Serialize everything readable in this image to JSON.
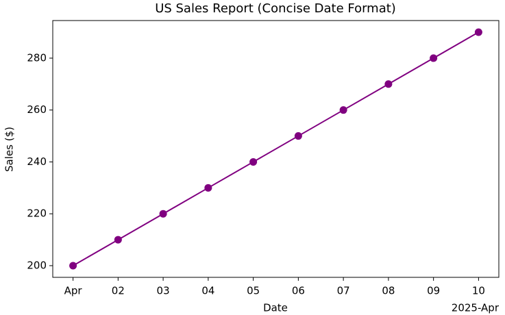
{
  "chart_data": {
    "type": "line",
    "title": "US Sales Report (Concise Date Format)",
    "x_label": "Date",
    "y_label": "Sales ($)",
    "x_offset_label": "2025-Apr",
    "x": [
      "2025-04-01",
      "2025-04-02",
      "2025-04-03",
      "2025-04-04",
      "2025-04-05",
      "2025-04-06",
      "2025-04-07",
      "2025-04-08",
      "2025-04-09",
      "2025-04-10"
    ],
    "series": [
      {
        "name": "Sales",
        "color": "#800080",
        "values": [
          200,
          210,
          220,
          230,
          240,
          250,
          260,
          270,
          280,
          290
        ]
      }
    ],
    "xlim": [
      "2025-03-31T13:12",
      "2025-04-10T10:48"
    ],
    "xticks": [
      {
        "value": "2025-04-01",
        "label": "Apr"
      },
      {
        "value": "2025-04-02",
        "label": "02"
      },
      {
        "value": "2025-04-03",
        "label": "03"
      },
      {
        "value": "2025-04-04",
        "label": "04"
      },
      {
        "value": "2025-04-05",
        "label": "05"
      },
      {
        "value": "2025-04-06",
        "label": "06"
      },
      {
        "value": "2025-04-07",
        "label": "07"
      },
      {
        "value": "2025-04-08",
        "label": "08"
      },
      {
        "value": "2025-04-09",
        "label": "09"
      },
      {
        "value": "2025-04-10",
        "label": "10"
      }
    ],
    "ylim": [
      195.5,
      294.5
    ],
    "yticks": [
      200,
      220,
      240,
      260,
      280
    ],
    "grid": false,
    "markers": true
  }
}
